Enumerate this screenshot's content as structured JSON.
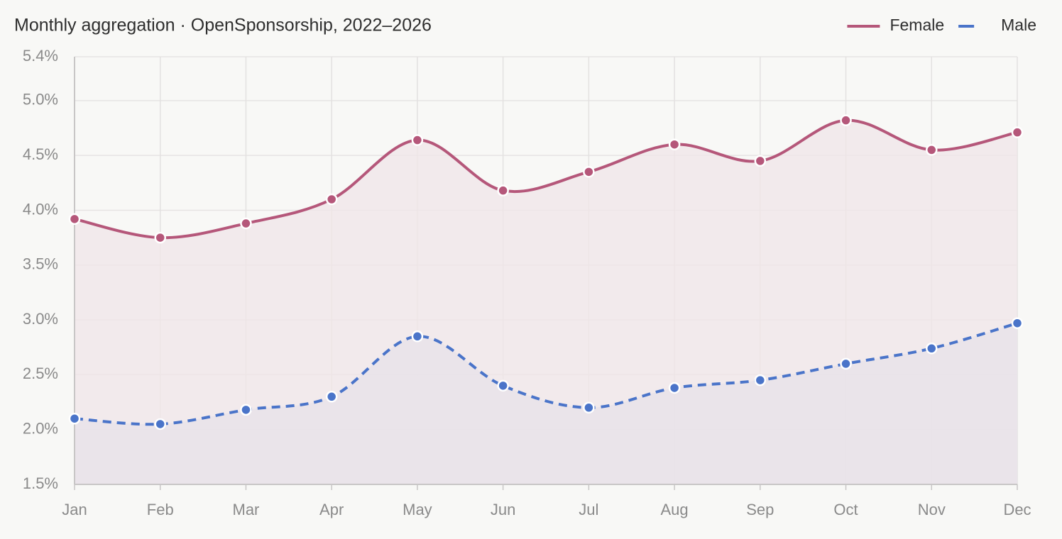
{
  "chart_data": {
    "type": "line",
    "title": "Monthly aggregation · OpenSponsorship, 2022–2026",
    "categories": [
      "Jan",
      "Feb",
      "Mar",
      "Apr",
      "May",
      "Jun",
      "Jul",
      "Aug",
      "Sep",
      "Oct",
      "Nov",
      "Dec"
    ],
    "series": [
      {
        "name": "Female",
        "color": "#b5577a",
        "dash": "solid",
        "area_color": "#f0e6e8",
        "values": [
          3.92,
          3.75,
          3.88,
          4.1,
          4.64,
          4.18,
          4.35,
          4.6,
          4.45,
          4.82,
          4.55,
          4.71
        ]
      },
      {
        "name": "Male",
        "color": "#4a74c9",
        "dash": "dashed",
        "area_color": "#e7e2ea",
        "values": [
          2.1,
          2.05,
          2.18,
          2.3,
          2.85,
          2.4,
          2.2,
          2.38,
          2.45,
          2.6,
          2.74,
          2.97
        ]
      }
    ],
    "ylim": [
      1.5,
      5.4
    ],
    "yticks": [
      {
        "value": 1.5,
        "label": "1.5%"
      },
      {
        "value": 2.0,
        "label": "2.0%"
      },
      {
        "value": 2.5,
        "label": "2.5%"
      },
      {
        "value": 3.0,
        "label": "3.0%"
      },
      {
        "value": 3.5,
        "label": "3.5%"
      },
      {
        "value": 4.0,
        "label": "4.0%"
      },
      {
        "value": 4.5,
        "label": "4.5%"
      },
      {
        "value": 5.0,
        "label": "5.0%"
      },
      {
        "value": 5.4,
        "label": "5.4%"
      }
    ],
    "grid": true,
    "legend": "top-right",
    "smooth": true
  }
}
